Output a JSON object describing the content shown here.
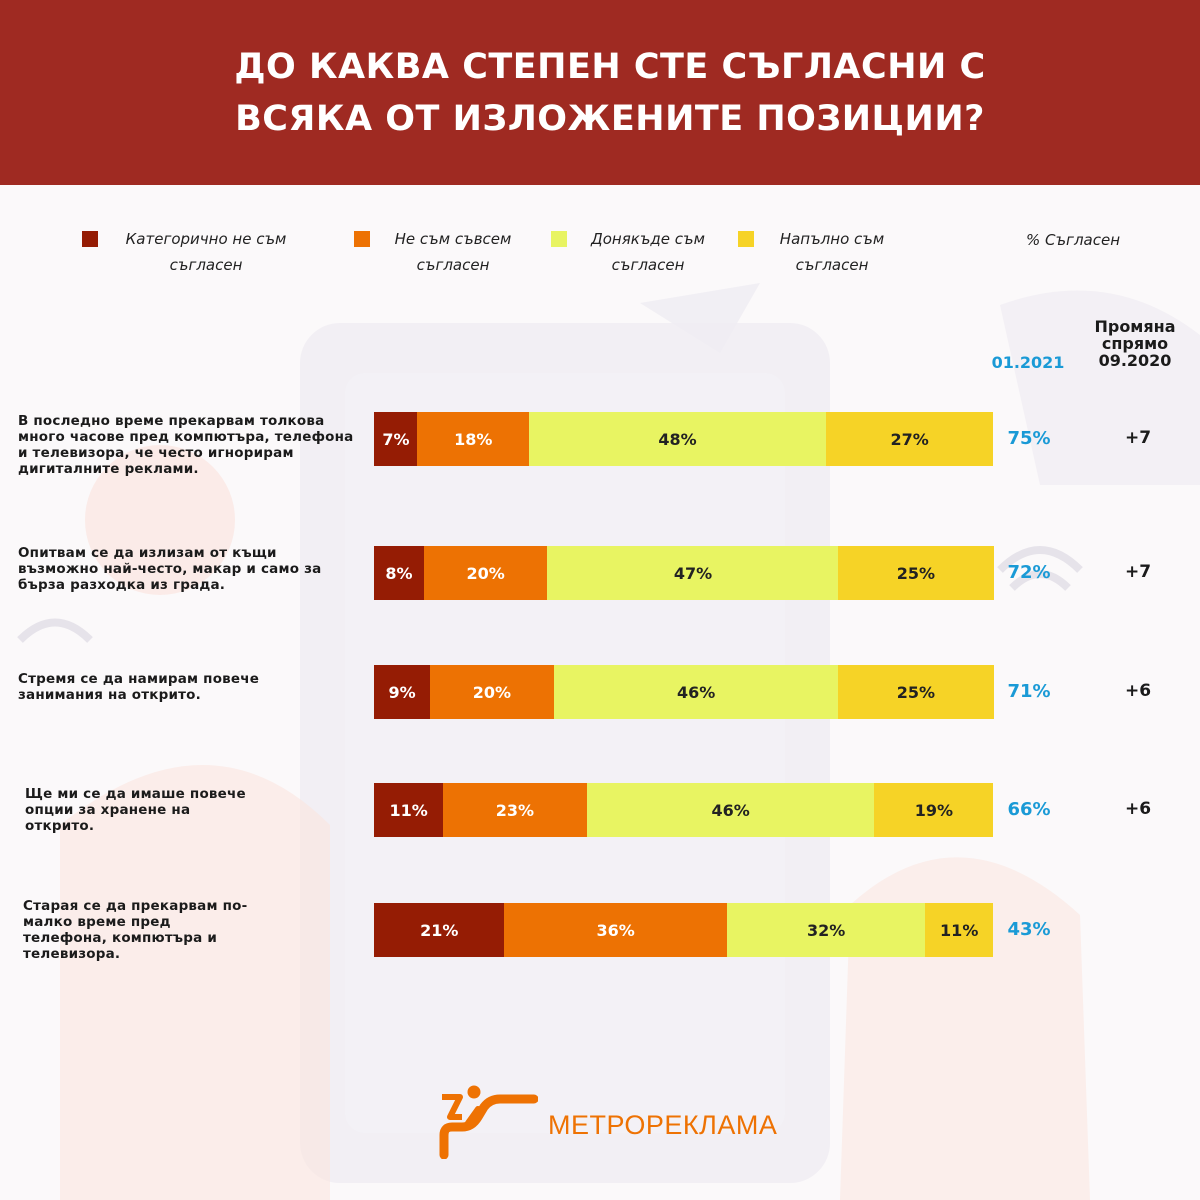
{
  "title": "ДО КАКВА СТЕПЕН СТЕ СЪГЛАСНИ С ВСЯКА ОТ ИЗЛОЖЕНИТЕ ПОЗИЦИИ?",
  "column_headers": {
    "agree_pct": "% Съгласен",
    "date_current": "01.2021",
    "change": "Промяна спрямо 09.2020"
  },
  "brand": {
    "name": "МЕТРОРЕКЛАМА",
    "color": "#ee7203"
  },
  "chart_data": {
    "type": "bar",
    "orientation": "horizontal",
    "stacked": true,
    "title": "ДО КАКВА СТЕПЕН СТЕ СЪГЛАСНИ С ВСЯКА ОТ ИЗЛОЖЕНИТЕ ПОЗИЦИИ?",
    "unit": "%",
    "legend_position": "top",
    "categories": [
      "В последно време прекарвам толкова много часове пред компютъра, телефона и телевизора, че често игнорирам дигиталните реклами.",
      "Опитвам се да излизам от къщи възможно най-често, макар и само за бърза разходка из града.",
      "Стремя се да намирам повече занимания на открито.",
      "Ще ми се да имаше повече опции за хранене на открито.",
      "Старая се да прекарвам по-малко време пред телефона, компютъра и телевизора."
    ],
    "series": [
      {
        "name": "Категорично не съм съгласен",
        "color": "#951c04",
        "text_color": "#ffffff",
        "values": [
          7,
          8,
          9,
          11,
          21
        ]
      },
      {
        "name": "Не съм съвсем съгласен",
        "color": "#ed7203",
        "text_color": "#ffffff",
        "values": [
          18,
          20,
          20,
          23,
          36
        ]
      },
      {
        "name": "Донякъде съм съгласен",
        "color": "#e8f462",
        "text_color": "#222222",
        "values": [
          48,
          47,
          46,
          46,
          32
        ]
      },
      {
        "name": "Напълно съм съгласен",
        "color": "#f6d326",
        "text_color": "#222222",
        "values": [
          27,
          25,
          25,
          19,
          11
        ]
      }
    ],
    "agree_totals": [
      75,
      72,
      71,
      66,
      43
    ],
    "changes": [
      "+7",
      "+7",
      "+6",
      "+6",
      ""
    ]
  }
}
